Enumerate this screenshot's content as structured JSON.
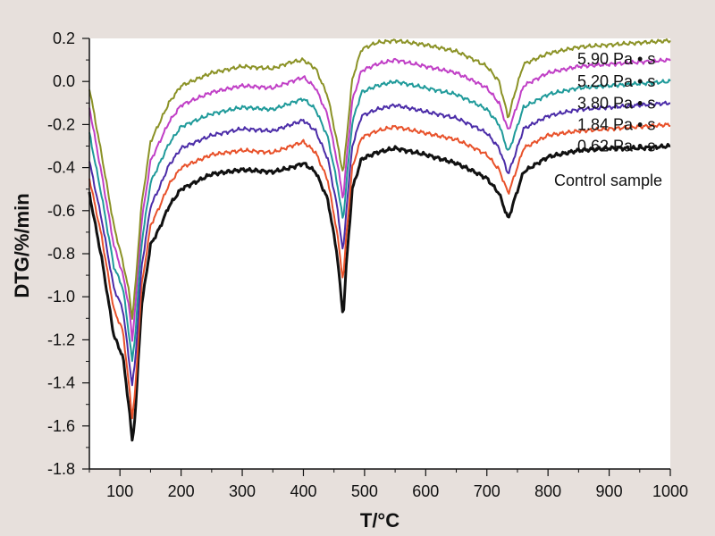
{
  "chart_data": {
    "type": "line",
    "xlabel": "T/°C",
    "ylabel": "DTG/%/min",
    "xlim": [
      50,
      1000
    ],
    "ylim": [
      -1.8,
      0.2
    ],
    "xticks": [
      100,
      200,
      300,
      400,
      500,
      600,
      700,
      800,
      900,
      1000
    ],
    "yticks": [
      0.2,
      0.0,
      -0.2,
      -0.4,
      -0.6,
      -0.8,
      -1.0,
      -1.2,
      -1.4,
      -1.6,
      -1.8
    ],
    "ytick_labels": [
      "0.2",
      "0.0",
      "-0.2",
      "-0.4",
      "-0.6",
      "-0.8",
      "-1.0",
      "-1.2",
      "-1.4",
      "-1.6",
      "-1.8"
    ],
    "grid": false,
    "legend": "inline labels at right end of curves",
    "x": [
      50,
      70,
      90,
      105,
      115,
      120,
      125,
      135,
      150,
      165,
      180,
      200,
      250,
      300,
      350,
      380,
      400,
      420,
      440,
      455,
      465,
      470,
      480,
      495,
      520,
      550,
      600,
      650,
      680,
      700,
      720,
      735,
      745,
      760,
      800,
      850,
      900,
      950,
      1000
    ],
    "series": [
      {
        "name": "Control sample",
        "color": "#111111",
        "values": [
          -0.52,
          -0.82,
          -1.18,
          -1.28,
          -1.52,
          -1.67,
          -1.55,
          -1.05,
          -0.76,
          -0.68,
          -0.58,
          -0.5,
          -0.43,
          -0.41,
          -0.42,
          -0.4,
          -0.38,
          -0.42,
          -0.55,
          -0.8,
          -1.1,
          -0.86,
          -0.5,
          -0.36,
          -0.33,
          -0.31,
          -0.34,
          -0.38,
          -0.42,
          -0.45,
          -0.52,
          -0.64,
          -0.55,
          -0.42,
          -0.35,
          -0.32,
          -0.31,
          -0.31,
          -0.3
        ]
      },
      {
        "name": "0.62 Pa • s",
        "color": "#e8512a",
        "values": [
          -0.45,
          -0.72,
          -1.06,
          -1.16,
          -1.42,
          -1.56,
          -1.44,
          -0.96,
          -0.67,
          -0.58,
          -0.48,
          -0.4,
          -0.34,
          -0.32,
          -0.33,
          -0.3,
          -0.28,
          -0.33,
          -0.46,
          -0.7,
          -0.93,
          -0.72,
          -0.4,
          -0.26,
          -0.23,
          -0.21,
          -0.24,
          -0.27,
          -0.31,
          -0.34,
          -0.41,
          -0.52,
          -0.44,
          -0.31,
          -0.25,
          -0.23,
          -0.22,
          -0.21,
          -0.2
        ]
      },
      {
        "name": "1.84 Pa • s",
        "color": "#4b2ca8",
        "values": [
          -0.37,
          -0.64,
          -0.96,
          -1.06,
          -1.3,
          -1.41,
          -1.3,
          -0.87,
          -0.58,
          -0.49,
          -0.39,
          -0.31,
          -0.25,
          -0.22,
          -0.23,
          -0.2,
          -0.18,
          -0.23,
          -0.36,
          -0.58,
          -0.8,
          -0.6,
          -0.3,
          -0.16,
          -0.13,
          -0.11,
          -0.14,
          -0.17,
          -0.21,
          -0.24,
          -0.31,
          -0.43,
          -0.35,
          -0.22,
          -0.16,
          -0.13,
          -0.12,
          -0.11,
          -0.1
        ]
      },
      {
        "name": "3.80 Pa • s",
        "color": "#1f9a9a",
        "values": [
          -0.24,
          -0.53,
          -0.86,
          -0.96,
          -1.18,
          -1.3,
          -1.18,
          -0.76,
          -0.47,
          -0.38,
          -0.29,
          -0.21,
          -0.15,
          -0.12,
          -0.13,
          -0.1,
          -0.08,
          -0.13,
          -0.26,
          -0.47,
          -0.65,
          -0.48,
          -0.19,
          -0.05,
          -0.02,
          0.0,
          -0.03,
          -0.06,
          -0.1,
          -0.13,
          -0.2,
          -0.33,
          -0.25,
          -0.12,
          -0.06,
          -0.03,
          -0.02,
          -0.01,
          0.0
        ]
      },
      {
        "name": "5.20 Pa • s",
        "color": "#c03fc6",
        "values": [
          -0.12,
          -0.43,
          -0.76,
          -0.9,
          -1.05,
          -1.2,
          -1.05,
          -0.66,
          -0.37,
          -0.28,
          -0.19,
          -0.11,
          -0.05,
          -0.02,
          -0.03,
          0.0,
          0.02,
          -0.03,
          -0.16,
          -0.37,
          -0.55,
          -0.38,
          -0.09,
          0.05,
          0.08,
          0.1,
          0.07,
          0.04,
          0.0,
          -0.03,
          -0.1,
          -0.23,
          -0.15,
          -0.02,
          0.04,
          0.07,
          0.08,
          0.09,
          0.1
        ]
      },
      {
        "name": "5.90 Pa • s",
        "color": "#8b9226",
        "values": [
          -0.03,
          -0.34,
          -0.67,
          -0.84,
          -0.98,
          -1.1,
          -0.96,
          -0.58,
          -0.28,
          -0.19,
          -0.1,
          -0.02,
          0.04,
          0.07,
          0.06,
          0.09,
          0.1,
          0.06,
          -0.07,
          -0.28,
          -0.43,
          -0.28,
          0.01,
          0.15,
          0.18,
          0.19,
          0.17,
          0.14,
          0.1,
          0.07,
          0.0,
          -0.17,
          -0.06,
          0.08,
          0.13,
          0.16,
          0.17,
          0.18,
          0.19
        ]
      }
    ],
    "legend_labels": [
      {
        "text": "5.90 Pa • s",
        "x": 848,
        "y": 0.105
      },
      {
        "text": "5.20 Pa • s",
        "x": 848,
        "y": 0.0
      },
      {
        "text": "3.80 Pa • s",
        "x": 848,
        "y": -0.1
      },
      {
        "text": "1.84 Pa • s",
        "x": 848,
        "y": -0.2
      },
      {
        "text": "0.62 Pa • s",
        "x": 848,
        "y": -0.3
      },
      {
        "text": "Control sample",
        "x": 810,
        "y": -0.46
      }
    ]
  }
}
